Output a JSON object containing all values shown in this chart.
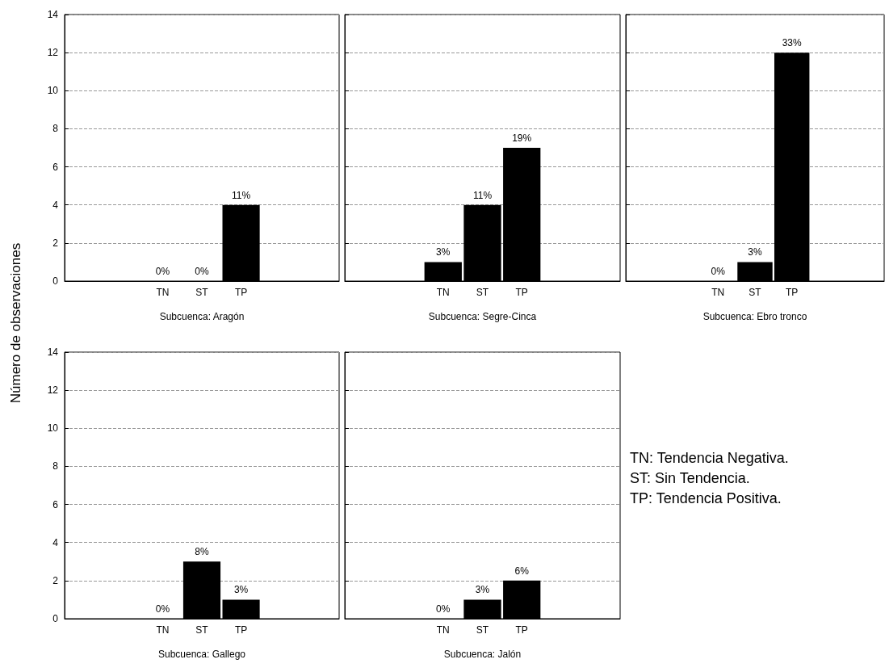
{
  "chart_data": [
    {
      "type": "bar",
      "xlabel": "Subcuenca: Aragón",
      "ylabel": "Número de observaciones",
      "categories": [
        null,
        null,
        "TN",
        "ST",
        "TP",
        null,
        null
      ],
      "values": [
        null,
        null,
        0,
        0,
        4,
        null,
        null
      ],
      "color": "#000000",
      "ylim": [
        0,
        14
      ],
      "yticks": [
        0,
        2,
        4,
        6,
        8,
        10,
        12,
        14
      ],
      "grid": "y",
      "annotations": [
        {
          "text": "0%",
          "x": "TN",
          "y": 0
        },
        {
          "text": "0%",
          "x": "ST",
          "y": 0
        },
        {
          "text": "11%",
          "x": "TP",
          "y": 4
        }
      ]
    },
    {
      "type": "bar",
      "xlabel": "Subcuenca: Segre-Cinca",
      "categories": [
        null,
        null,
        "TN",
        "ST",
        "TP",
        null,
        null
      ],
      "values": [
        null,
        null,
        1,
        4,
        7,
        null,
        null
      ],
      "color": "#000000",
      "ylim": [
        0,
        14
      ],
      "yticks": [
        0,
        2,
        4,
        6,
        8,
        10,
        12,
        14
      ],
      "grid": "y",
      "tick_labels": "x",
      "annotations": [
        {
          "text": "3%",
          "x": "TN",
          "y": 1
        },
        {
          "text": "11%",
          "x": "ST",
          "y": 4
        },
        {
          "text": "19%",
          "x": "TP",
          "y": 7
        }
      ]
    },
    {
      "type": "bar",
      "xlabel": "Subcuenca: Ebro tronco",
      "categories": [
        null,
        null,
        "TN",
        "ST",
        "TP",
        null,
        null
      ],
      "values": [
        null,
        null,
        0,
        1,
        12,
        null,
        null
      ],
      "color": "#000000",
      "ylim": [
        0,
        14
      ],
      "yticks": [
        0,
        2,
        4,
        6,
        8,
        10,
        12,
        14
      ],
      "grid": "y",
      "tick_labels": "x",
      "annotations": [
        {
          "text": "0%",
          "x": "TN",
          "y": 0
        },
        {
          "text": "3%",
          "x": "ST",
          "y": 1
        },
        {
          "text": "33%",
          "x": "TP",
          "y": 12
        }
      ]
    },
    {
      "type": "bar",
      "xlabel": "Subcuenca: Gallego",
      "categories": [
        null,
        null,
        "TN",
        "ST",
        "TP",
        null,
        null
      ],
      "values": [
        null,
        null,
        0,
        3,
        1,
        null,
        null
      ],
      "color": "#000000",
      "ylim": [
        0,
        14
      ],
      "yticks": [
        0,
        2,
        4,
        6,
        8,
        10,
        12,
        14
      ],
      "grid": "y",
      "annotations": [
        {
          "text": "0%",
          "x": "TN",
          "y": 0
        },
        {
          "text": "8%",
          "x": "ST",
          "y": 3
        },
        {
          "text": "3%",
          "x": "TP",
          "y": 1
        }
      ]
    },
    {
      "type": "bar",
      "xlabel": "Subcuenca: Jalón",
      "categories": [
        null,
        null,
        "TN",
        "ST",
        "TP",
        null,
        null
      ],
      "values": [
        null,
        null,
        0,
        1,
        2,
        null,
        null
      ],
      "color": "#000000",
      "ylim": [
        0,
        14
      ],
      "yticks": [
        0,
        2,
        4,
        6,
        8,
        10,
        12,
        14
      ],
      "grid": "y",
      "tick_labels": "x",
      "annotations": [
        {
          "text": "0%",
          "x": "TN",
          "y": 0
        },
        {
          "text": "3%",
          "x": "ST",
          "y": 1
        },
        {
          "text": "6%",
          "x": "TP",
          "y": 2
        }
      ]
    },
    {
      "type": "other",
      "annotations": [
        "TN: Tendencia Negativa.",
        "ST: Sin Tendencia.",
        "TP: Tendencia Positiva."
      ]
    }
  ]
}
